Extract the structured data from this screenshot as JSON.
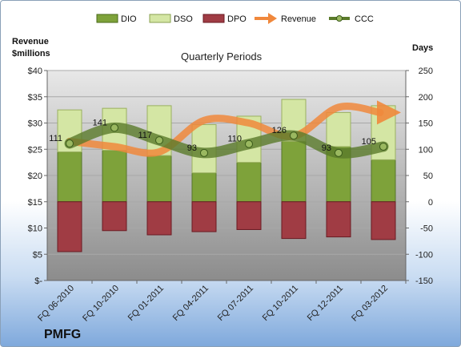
{
  "chart_data": {
    "type": "bar",
    "title": "Quarterly Periods",
    "company": "PMFG",
    "left_axis": {
      "label_line1": "Revenue",
      "label_line2": "$millions",
      "range": [
        0,
        40
      ],
      "ticks": [
        "$-",
        "$5",
        "$10",
        "$15",
        "$20",
        "$25",
        "$30",
        "$35",
        "$40"
      ]
    },
    "right_axis": {
      "label": "Days",
      "range": [
        -150,
        250
      ],
      "ticks": [
        "-150",
        "-100",
        "-50",
        "0",
        "50",
        "100",
        "150",
        "200",
        "250"
      ]
    },
    "categories": [
      "FQ 06-2010",
      "FQ 10-2010",
      "FQ 01-2011",
      "FQ 04-2011",
      "FQ 07-2011",
      "FQ 10-2011",
      "FQ 12-2011",
      "FQ 03-2012"
    ],
    "series": [
      {
        "name": "DIO",
        "kind": "bar",
        "axis": "right",
        "values": [
          95,
          98,
          88,
          55,
          75,
          115,
          105,
          80
        ]
      },
      {
        "name": "DSO",
        "kind": "bar",
        "axis": "right",
        "values": [
          80,
          80,
          95,
          92,
          88,
          80,
          65,
          103
        ]
      },
      {
        "name": "DPO",
        "kind": "bar",
        "axis": "right",
        "values": [
          -95,
          -55,
          -63,
          -57,
          -53,
          -70,
          -67,
          -72
        ]
      },
      {
        "name": "Revenue",
        "kind": "line",
        "axis": "left",
        "values": [
          26.5,
          25.5,
          24.5,
          30.5,
          30,
          27.5,
          33,
          32
        ]
      },
      {
        "name": "CCC",
        "kind": "line",
        "axis": "right",
        "values": [
          111,
          141,
          117,
          93,
          110,
          126,
          93,
          105
        ],
        "labels": [
          "111",
          "141",
          "117",
          "93",
          "110",
          "126",
          "93",
          "105"
        ]
      }
    ],
    "colors": {
      "DIO": "#7ea23a",
      "DSO": "#d4e6a4",
      "DPO": "#a03c44",
      "Revenue": "#f0883c",
      "CCC": "#5a7a2a"
    },
    "grid": true,
    "legend": "top"
  }
}
